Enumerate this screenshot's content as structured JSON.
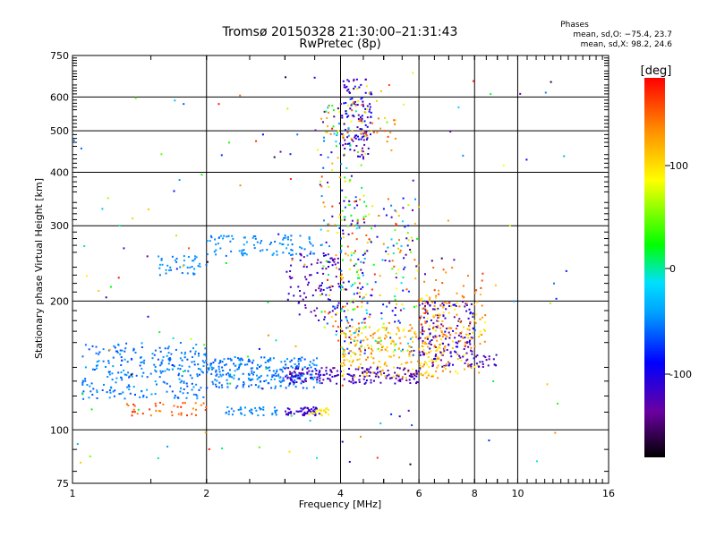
{
  "chart_data": {
    "type": "scatter",
    "title": "Tromsø 20150328 21:30:00–21:31:43",
    "subtitle": "RwPretec (8p)",
    "xlabel": "Frequency [MHz]",
    "ylabel": "Stationary phase Virtual Height [km]",
    "x_scale": "log",
    "y_scale": "log",
    "xlim": [
      1,
      16
    ],
    "ylim": [
      75,
      750
    ],
    "x_major_ticks": [
      1,
      2,
      4,
      6,
      8,
      10,
      16
    ],
    "x_tick_labels": [
      "1",
      "2",
      "4",
      "6",
      "8",
      "10",
      "16"
    ],
    "y_major_ticks": [
      75,
      100,
      200,
      300,
      400,
      500,
      600,
      750
    ],
    "y_tick_labels": [
      "75",
      "100",
      "200",
      "300",
      "400",
      "500",
      "600",
      "750"
    ],
    "grid": true,
    "phases_box": {
      "title": "Phases",
      "line1": "mean, sd,O: −75.4, 23.7",
      "line2": "mean, sd,X:  98.2, 24.6"
    },
    "colorbar": {
      "label": "[deg]",
      "range": [
        -180,
        180
      ],
      "ticks": [
        100,
        0,
        -100
      ],
      "tick_labels": [
        "100",
        "0",
        "-100"
      ],
      "colormap": "rainbow (black-purple-blue-cyan-green-yellow-orange-red)"
    },
    "clusters": [
      {
        "name": "low-E-cyan",
        "x": [
          1.05,
          2.0
        ],
        "h": [
          118,
          160
        ],
        "phase": [
          -70,
          -40
        ],
        "n": 260
      },
      {
        "name": "E-cyan-band",
        "x": [
          2.0,
          3.6
        ],
        "h": [
          125,
          148
        ],
        "phase": [
          -70,
          -40
        ],
        "n": 260
      },
      {
        "name": "base-110",
        "x": [
          1.3,
          2.0
        ],
        "h": [
          108,
          116
        ],
        "phase": [
          130,
          170
        ],
        "n": 40
      },
      {
        "name": "base-110-cyan",
        "x": [
          2.2,
          2.9
        ],
        "h": [
          108,
          113
        ],
        "phase": [
          -60,
          -40
        ],
        "n": 40
      },
      {
        "name": "base-110-blue",
        "x": [
          3.0,
          3.6
        ],
        "h": [
          108,
          113
        ],
        "phase": [
          -130,
          -100
        ],
        "n": 50
      },
      {
        "name": "base-110-yellow",
        "x": [
          3.4,
          3.8
        ],
        "h": [
          108,
          113
        ],
        "phase": [
          80,
          110
        ],
        "n": 20
      },
      {
        "name": "F-trace-cyan",
        "x": [
          1.55,
          2.0
        ],
        "h": [
          230,
          255
        ],
        "phase": [
          -60,
          -40
        ],
        "n": 40
      },
      {
        "name": "F-trace-cyan-2",
        "x": [
          2.0,
          3.5
        ],
        "h": [
          255,
          285
        ],
        "phase": [
          -60,
          -40
        ],
        "n": 90
      },
      {
        "name": "F-blue-mid",
        "x": [
          3.0,
          4.0
        ],
        "h": [
          180,
          260
        ],
        "phase": [
          -140,
          -100
        ],
        "n": 90
      },
      {
        "name": "F-mixed-tall",
        "x": [
          3.6,
          4.6
        ],
        "h": [
          150,
          600
        ],
        "phase": [
          -150,
          170
        ],
        "n": 220
      },
      {
        "name": "top-blue",
        "x": [
          4.0,
          4.7
        ],
        "h": [
          430,
          660
        ],
        "phase": [
          -140,
          -80
        ],
        "n": 110
      },
      {
        "name": "top-orange",
        "x": [
          4.0,
          5.4
        ],
        "h": [
          470,
          650
        ],
        "phase": [
          90,
          160
        ],
        "n": 40
      },
      {
        "name": "mid-mixed",
        "x": [
          4.0,
          6.0
        ],
        "h": [
          150,
          350
        ],
        "phase": [
          -150,
          170
        ],
        "n": 220
      },
      {
        "name": "yellow-band",
        "x": [
          4.0,
          6.8
        ],
        "h": [
          132,
          175
        ],
        "phase": [
          80,
          140
        ],
        "n": 230
      },
      {
        "name": "low-blue-band",
        "x": [
          3.0,
          6.0
        ],
        "h": [
          128,
          140
        ],
        "phase": [
          -140,
          -100
        ],
        "n": 180
      },
      {
        "name": "6-8-blue",
        "x": [
          6.0,
          8.0
        ],
        "h": [
          140,
          200
        ],
        "phase": [
          -140,
          -90
        ],
        "n": 160
      },
      {
        "name": "6-8-yellow",
        "x": [
          6.0,
          8.5
        ],
        "h": [
          135,
          210
        ],
        "phase": [
          80,
          140
        ],
        "n": 120
      },
      {
        "name": "6-8-orange",
        "x": [
          6.0,
          8.5
        ],
        "h": [
          160,
          250
        ],
        "phase": [
          120,
          170
        ],
        "n": 50
      },
      {
        "name": "tail-blue",
        "x": [
          8.0,
          9.0
        ],
        "h": [
          140,
          150
        ],
        "phase": [
          -140,
          -110
        ],
        "n": 20
      },
      {
        "name": "scatter-sparse",
        "x": [
          1.0,
          13.0
        ],
        "h": [
          80,
          700
        ],
        "phase": [
          -180,
          180
        ],
        "n": 150
      }
    ]
  }
}
